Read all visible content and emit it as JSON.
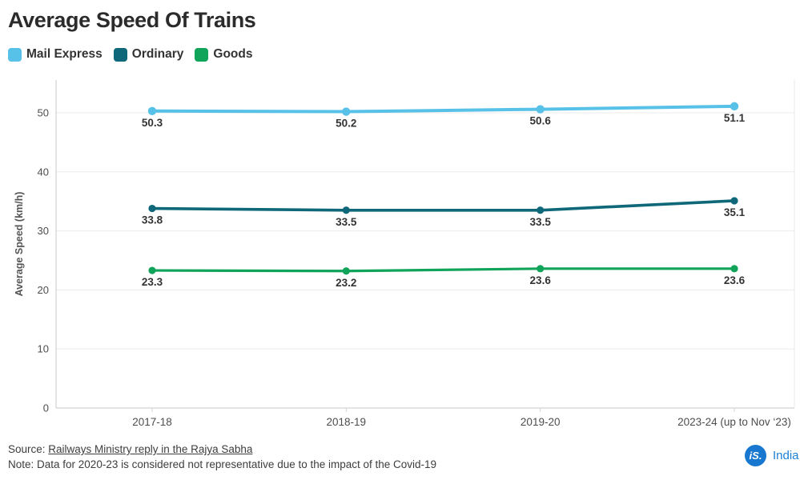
{
  "header": {
    "title": "Average Speed Of Trains"
  },
  "chart_data": {
    "type": "line",
    "categories": [
      "2017-18",
      "2018-19",
      "2019-20",
      "2023-24 (up to Nov ‘23)"
    ],
    "series": [
      {
        "name": "Mail Express",
        "color": "#58C1E8",
        "values": [
          50.3,
          50.2,
          50.6,
          51.1
        ]
      },
      {
        "name": "Ordinary",
        "color": "#0E6879",
        "values": [
          33.8,
          33.5,
          33.5,
          35.1
        ]
      },
      {
        "name": "Goods",
        "color": "#10A35A",
        "values": [
          23.3,
          23.2,
          23.6,
          23.6
        ]
      }
    ],
    "title": "Average Speed Of Trains",
    "xlabel": "",
    "ylabel": "Average Speed (km/h)",
    "ylim": [
      0,
      55
    ],
    "yticks": [
      0,
      10,
      20,
      30,
      40,
      50
    ],
    "grid": "horizontal",
    "legend_position": "top-left",
    "data_labels": true,
    "label_color": "#333333",
    "axis_color": "#c9c9c9",
    "grid_color": "#ebebeb",
    "tick_label_color": "#4d4d4d"
  },
  "footer": {
    "source_prefix": "Source: ",
    "source_link": "Railways Ministry reply in the Rajya Sabha",
    "note": "Note: Data for 2020-23 is considered not representative due to the impact of the Covid-19"
  },
  "logo": {
    "badge": "iS.",
    "wordmark": "India",
    "badge_color": "#1878D0"
  }
}
